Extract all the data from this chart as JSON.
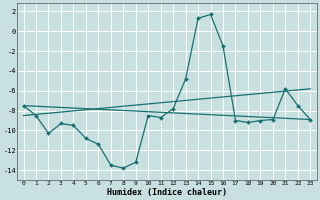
{
  "xlabel": "Humidex (Indice chaleur)",
  "bg_color": "#c8e0e0",
  "grid_color": "#ffffff",
  "line_color": "#1a7070",
  "xlim": [
    -0.5,
    23.5
  ],
  "ylim": [
    -15.0,
    2.8
  ],
  "yticks": [
    2,
    0,
    -2,
    -4,
    -6,
    -8,
    -10,
    -12,
    -14
  ],
  "xticks": [
    0,
    1,
    2,
    3,
    4,
    5,
    6,
    7,
    8,
    9,
    10,
    11,
    12,
    13,
    14,
    15,
    16,
    17,
    18,
    19,
    20,
    21,
    22,
    23
  ],
  "curve_x": [
    0,
    1,
    2,
    3,
    4,
    5,
    6,
    7,
    8,
    9,
    10,
    11,
    12,
    13,
    14,
    15,
    16,
    17,
    18,
    19,
    20,
    21,
    22,
    23
  ],
  "curve_y": [
    -7.5,
    -8.5,
    -10.3,
    -9.3,
    -9.5,
    -10.8,
    -11.4,
    -13.5,
    -13.8,
    -13.2,
    -8.5,
    -8.7,
    -7.8,
    -4.8,
    1.3,
    1.7,
    -1.5,
    -9.0,
    -9.2,
    -9.0,
    -8.9,
    -5.8,
    -7.5,
    -8.9
  ],
  "line1_x": [
    0,
    23
  ],
  "line1_y": [
    -7.5,
    -8.9
  ],
  "line2_x": [
    0,
    23
  ],
  "line2_y": [
    -8.5,
    -5.8
  ],
  "line3_x": [
    0,
    23
  ],
  "line3_y": [
    -7.5,
    -8.9
  ]
}
